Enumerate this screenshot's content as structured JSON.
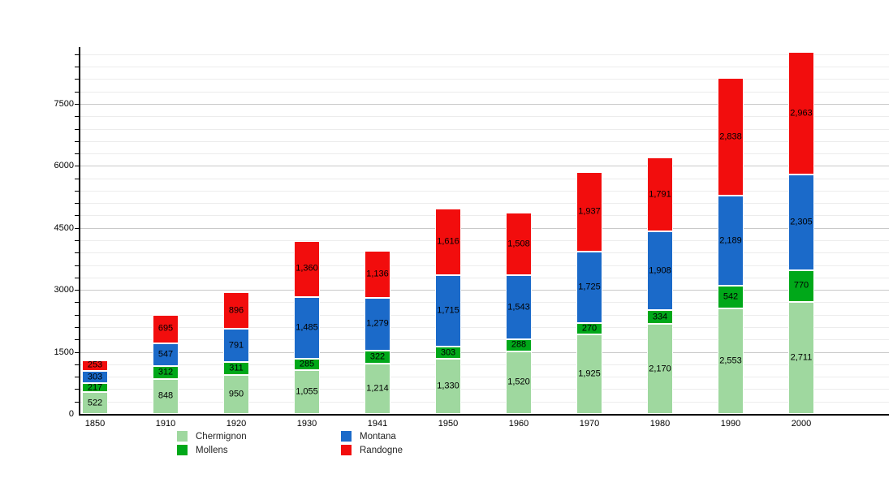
{
  "chart_data": {
    "type": "bar",
    "stacked": true,
    "title": "",
    "xlabel": "",
    "ylabel": "",
    "categories": [
      "1850",
      "1910",
      "1920",
      "1930",
      "1941",
      "1950",
      "1960",
      "1970",
      "1980",
      "1990",
      "2000"
    ],
    "series": [
      {
        "name": "Chermignon",
        "color": "#9fd89f",
        "values": [
          522,
          848,
          950,
          1055,
          1214,
          1330,
          1520,
          1925,
          2170,
          2553,
          2711
        ]
      },
      {
        "name": "Mollens",
        "color": "#00a819",
        "values": [
          217,
          312,
          311,
          285,
          322,
          303,
          288,
          270,
          334,
          542,
          770
        ]
      },
      {
        "name": "Montana",
        "color": "#1b6ac9",
        "values": [
          303,
          547,
          791,
          1485,
          1279,
          1715,
          1543,
          1725,
          1908,
          2189,
          2305
        ]
      },
      {
        "name": "Randogne",
        "color": "#f20d0d",
        "values": [
          253,
          695,
          896,
          1360,
          1136,
          1616,
          1508,
          1937,
          1791,
          2838,
          2963
        ]
      }
    ],
    "bar_value_labels": true,
    "ylim": [
      0,
      8873
    ],
    "ytick_major_step": 1500,
    "ytick_minor_step": 300,
    "ytick_labels": [
      "0",
      "1500",
      "3000",
      "4500",
      "6000",
      "7500"
    ],
    "grid": true,
    "legend_position": "bottom",
    "legend_columns": [
      [
        "Chermignon",
        "Mollens"
      ],
      [
        "Montana",
        "Randogne"
      ]
    ]
  },
  "axis_colors": {
    "axis_line": "#000000",
    "gridline_major": "#c9c9c9",
    "gridline_minor": "#ececec"
  }
}
